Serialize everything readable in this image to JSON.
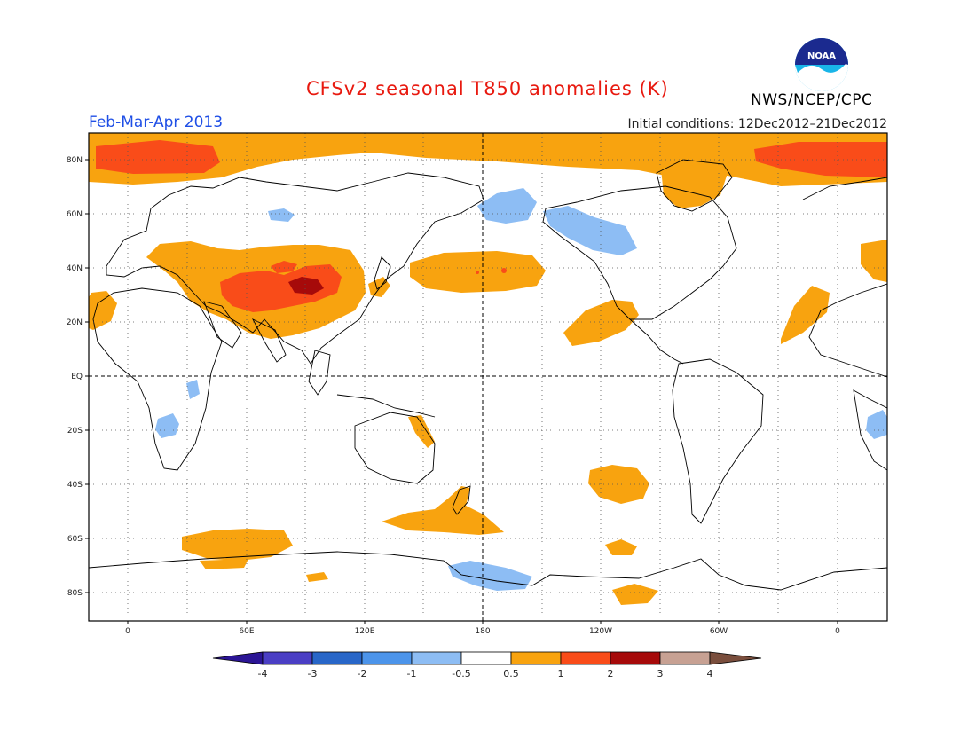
{
  "header": {
    "title": "CFSv2 seasonal T850 anomalies (K)",
    "season": "Feb-Mar-Apr 2013",
    "initial_conditions": "Initial conditions: 12Dec2012–21Dec2012",
    "agency": "NWS/NCEP/CPC",
    "logo_text": "NOAA"
  },
  "map": {
    "lat_labels": [
      "80N",
      "60N",
      "40N",
      "20N",
      "EQ",
      "20S",
      "40S",
      "60S",
      "80S"
    ],
    "lon_labels": [
      "0",
      "60E",
      "120E",
      "180",
      "120W",
      "60W",
      "0"
    ],
    "units": "K"
  },
  "colorbar": {
    "labels": [
      "-4",
      "-3",
      "-2",
      "-1",
      "-0.5",
      "0.5",
      "1",
      "2",
      "3",
      "4"
    ],
    "colors": [
      "#2b1595",
      "#4a3ec4",
      "#2866c8",
      "#4c94ea",
      "#8dbdf4",
      "#ffffff",
      "#f8a30f",
      "#f94c19",
      "#a60a0a",
      "#c7a193",
      "#7a4e3d"
    ]
  },
  "colors": {
    "orange": "#f8a30f",
    "red": "#f94c19",
    "darkred": "#a60a0a",
    "blue": "#8dbdf4",
    "title_red": "#e8190f",
    "season_blue": "#1f4fe6"
  }
}
